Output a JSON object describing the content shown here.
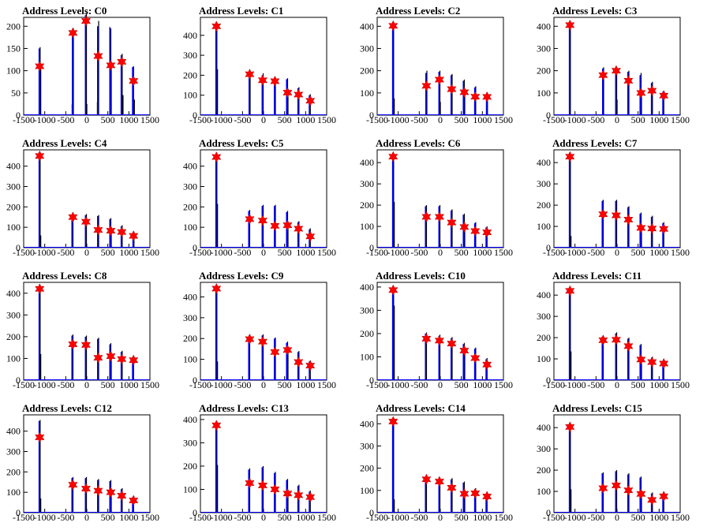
{
  "xticks": [
    "-1500",
    "-1000",
    "-500",
    "0",
    "500",
    "1000",
    "1500"
  ],
  "xlim": [
    -1500,
    1500
  ],
  "peak_x": [
    -1120,
    -330,
    -20,
    270,
    570,
    830,
    1110
  ],
  "colors": {
    "hist": "#0000ff",
    "black": "#000000",
    "marker": "#ff0000"
  },
  "chart_data": [
    {
      "type": "histogram",
      "title": "Address Levels: C0",
      "ylim": [
        0,
        220
      ],
      "yticks": [
        0,
        50,
        100,
        150,
        200
      ],
      "markers": [
        110,
        185,
        212,
        133,
        112,
        120,
        77
      ],
      "spikes": [
        [
          -1120,
          153,
          150
        ],
        [
          -1105,
          110,
          100
        ],
        [
          -360,
          25,
          0
        ],
        [
          -330,
          195,
          190
        ],
        [
          -20,
          230,
          225
        ],
        [
          -10,
          25,
          0
        ],
        [
          240,
          30,
          0
        ],
        [
          270,
          212,
          200
        ],
        [
          560,
          195,
          198
        ],
        [
          570,
          113,
          113
        ],
        [
          830,
          138,
          135
        ],
        [
          850,
          45,
          0
        ],
        [
          1100,
          110,
          108
        ],
        [
          1120,
          35,
          0
        ]
      ]
    },
    {
      "type": "histogram",
      "title": "Address Levels: C1",
      "ylim": [
        0,
        490
      ],
      "yticks": [
        0,
        100,
        200,
        300,
        400
      ],
      "markers": [
        445,
        205,
        175,
        170,
        113,
        103,
        72
      ],
      "spikes": [
        [
          -1120,
          450,
          440
        ],
        [
          -1105,
          230,
          0
        ],
        [
          -350,
          70,
          0
        ],
        [
          -330,
          215,
          210
        ],
        [
          -30,
          60,
          0
        ],
        [
          -20,
          210,
          200
        ],
        [
          260,
          55,
          0
        ],
        [
          270,
          190,
          185
        ],
        [
          560,
          185,
          180
        ],
        [
          570,
          113,
          110
        ],
        [
          830,
          140,
          135
        ],
        [
          1100,
          105,
          100
        ]
      ]
    },
    {
      "type": "histogram",
      "title": "Address Levels: C2",
      "ylim": [
        0,
        440
      ],
      "yticks": [
        0,
        100,
        200,
        300,
        400
      ],
      "markers": [
        402,
        132,
        160,
        117,
        103,
        83,
        82
      ],
      "spikes": [
        [
          -1120,
          405,
          400
        ],
        [
          -1105,
          75,
          0
        ],
        [
          -340,
          70,
          0
        ],
        [
          -330,
          200,
          190
        ],
        [
          -20,
          200,
          195
        ],
        [
          -10,
          60,
          0
        ],
        [
          270,
          185,
          180
        ],
        [
          560,
          160,
          155
        ],
        [
          570,
          105,
          100
        ],
        [
          830,
          130,
          125
        ],
        [
          1110,
          100,
          95
        ]
      ]
    },
    {
      "type": "histogram",
      "title": "Address Levels: C3",
      "ylim": [
        0,
        440
      ],
      "yticks": [
        0,
        100,
        200,
        300,
        400
      ],
      "markers": [
        405,
        180,
        200,
        155,
        100,
        110,
        88
      ],
      "spikes": [
        [
          -1120,
          410,
          405
        ],
        [
          -340,
          70,
          0
        ],
        [
          -330,
          215,
          210
        ],
        [
          -20,
          215,
          210
        ],
        [
          -10,
          70,
          0
        ],
        [
          270,
          200,
          195
        ],
        [
          560,
          190,
          180
        ],
        [
          570,
          100,
          95
        ],
        [
          830,
          150,
          145
        ],
        [
          1100,
          110,
          105
        ]
      ]
    },
    {
      "type": "histogram",
      "title": "Address Levels: C4",
      "ylim": [
        0,
        480
      ],
      "yticks": [
        0,
        100,
        200,
        300,
        400
      ],
      "markers": [
        450,
        150,
        127,
        87,
        83,
        77,
        58
      ],
      "spikes": [
        [
          -1120,
          455,
          450
        ],
        [
          -1105,
          60,
          0
        ],
        [
          -340,
          165,
          160
        ],
        [
          -20,
          165,
          160
        ],
        [
          270,
          160,
          155
        ],
        [
          560,
          145,
          140
        ],
        [
          570,
          85,
          80
        ],
        [
          830,
          110,
          105
        ],
        [
          1110,
          75,
          70
        ]
      ]
    },
    {
      "type": "histogram",
      "title": "Address Levels: C5",
      "ylim": [
        0,
        480
      ],
      "yticks": [
        0,
        100,
        200,
        300,
        400
      ],
      "markers": [
        445,
        140,
        133,
        107,
        110,
        93,
        55
      ],
      "spikes": [
        [
          -1120,
          450,
          445
        ],
        [
          -1105,
          215,
          0
        ],
        [
          -340,
          185,
          180
        ],
        [
          -20,
          210,
          205
        ],
        [
          270,
          210,
          205
        ],
        [
          560,
          180,
          175
        ],
        [
          570,
          110,
          105
        ],
        [
          830,
          130,
          125
        ],
        [
          1100,
          95,
          90
        ]
      ]
    },
    {
      "type": "histogram",
      "title": "Address Levels: C6",
      "ylim": [
        0,
        460
      ],
      "yticks": [
        0,
        100,
        200,
        300,
        400
      ],
      "markers": [
        428,
        145,
        145,
        118,
        97,
        78,
        72
      ],
      "spikes": [
        [
          -1120,
          430,
          425
        ],
        [
          -1105,
          215,
          0
        ],
        [
          -340,
          200,
          195
        ],
        [
          -20,
          200,
          195
        ],
        [
          270,
          180,
          175
        ],
        [
          560,
          160,
          155
        ],
        [
          570,
          97,
          95
        ],
        [
          830,
          120,
          115
        ],
        [
          1100,
          100,
          95
        ]
      ]
    },
    {
      "type": "histogram",
      "title": "Address Levels: C7",
      "ylim": [
        0,
        460
      ],
      "yticks": [
        0,
        100,
        200,
        300,
        400
      ],
      "markers": [
        428,
        157,
        152,
        132,
        93,
        90,
        88
      ],
      "spikes": [
        [
          -1120,
          430,
          425
        ],
        [
          -1105,
          55,
          0
        ],
        [
          -340,
          225,
          220
        ],
        [
          -20,
          225,
          220
        ],
        [
          270,
          195,
          190
        ],
        [
          560,
          165,
          160
        ],
        [
          570,
          93,
          90
        ],
        [
          830,
          150,
          145
        ],
        [
          1100,
          120,
          115
        ]
      ]
    },
    {
      "type": "histogram",
      "title": "Address Levels: C8",
      "ylim": [
        0,
        450
      ],
      "yticks": [
        0,
        100,
        200,
        300,
        400
      ],
      "markers": [
        420,
        165,
        162,
        103,
        110,
        97,
        92
      ],
      "spikes": [
        [
          -1120,
          425,
          420
        ],
        [
          -1105,
          120,
          0
        ],
        [
          -340,
          210,
          205
        ],
        [
          -20,
          205,
          200
        ],
        [
          270,
          195,
          190
        ],
        [
          560,
          170,
          165
        ],
        [
          570,
          110,
          105
        ],
        [
          830,
          135,
          130
        ],
        [
          1100,
          110,
          105
        ]
      ]
    },
    {
      "type": "histogram",
      "title": "Address Levels: C9",
      "ylim": [
        0,
        470
      ],
      "yticks": [
        0,
        100,
        200,
        300,
        400
      ],
      "markers": [
        440,
        197,
        185,
        135,
        145,
        87,
        70
      ],
      "spikes": [
        [
          -1120,
          445,
          440
        ],
        [
          -1105,
          90,
          0
        ],
        [
          -340,
          215,
          210
        ],
        [
          -20,
          220,
          215
        ],
        [
          270,
          205,
          200
        ],
        [
          560,
          185,
          180
        ],
        [
          570,
          145,
          140
        ],
        [
          830,
          140,
          135
        ],
        [
          1100,
          95,
          90
        ]
      ]
    },
    {
      "type": "histogram",
      "title": "Address Levels: C10",
      "ylim": [
        0,
        420
      ],
      "yticks": [
        0,
        100,
        200,
        300,
        400
      ],
      "markers": [
        387,
        178,
        170,
        157,
        127,
        95,
        67
      ],
      "spikes": [
        [
          -1120,
          390,
          385
        ],
        [
          -1105,
          320,
          0
        ],
        [
          -340,
          205,
          200
        ],
        [
          -20,
          195,
          190
        ],
        [
          270,
          185,
          180
        ],
        [
          560,
          160,
          155
        ],
        [
          570,
          127,
          125
        ],
        [
          830,
          140,
          135
        ],
        [
          1100,
          95,
          90
        ]
      ]
    },
    {
      "type": "histogram",
      "title": "Address Levels: C11",
      "ylim": [
        0,
        460
      ],
      "yticks": [
        0,
        100,
        200,
        300,
        400
      ],
      "markers": [
        420,
        188,
        190,
        160,
        97,
        85,
        78
      ],
      "spikes": [
        [
          -1120,
          425,
          420
        ],
        [
          -1105,
          135,
          0
        ],
        [
          -340,
          210,
          205
        ],
        [
          -20,
          225,
          220
        ],
        [
          270,
          200,
          195
        ],
        [
          560,
          170,
          165
        ],
        [
          570,
          97,
          95
        ],
        [
          830,
          110,
          105
        ],
        [
          1100,
          95,
          90
        ]
      ]
    },
    {
      "type": "histogram",
      "title": "Address Levels: C12",
      "ylim": [
        0,
        480
      ],
      "yticks": [
        0,
        100,
        200,
        300,
        400
      ],
      "markers": [
        370,
        137,
        118,
        108,
        100,
        83,
        60
      ],
      "spikes": [
        [
          -1120,
          455,
          450
        ],
        [
          -1105,
          70,
          0
        ],
        [
          -340,
          175,
          170
        ],
        [
          -20,
          175,
          170
        ],
        [
          270,
          165,
          160
        ],
        [
          560,
          160,
          155
        ],
        [
          570,
          100,
          95
        ],
        [
          830,
          120,
          115
        ],
        [
          1100,
          80,
          75
        ]
      ]
    },
    {
      "type": "histogram",
      "title": "Address Levels: C13",
      "ylim": [
        0,
        420
      ],
      "yticks": [
        0,
        100,
        200,
        300,
        400
      ],
      "markers": [
        375,
        127,
        117,
        100,
        82,
        75,
        67
      ],
      "spikes": [
        [
          -1120,
          380,
          375
        ],
        [
          -1105,
          205,
          0
        ],
        [
          -340,
          190,
          185
        ],
        [
          -20,
          200,
          195
        ],
        [
          270,
          175,
          170
        ],
        [
          560,
          145,
          140
        ],
        [
          570,
          82,
          80
        ],
        [
          830,
          120,
          115
        ],
        [
          1100,
          95,
          90
        ]
      ]
    },
    {
      "type": "histogram",
      "title": "Address Levels: C14",
      "ylim": [
        0,
        440
      ],
      "yticks": [
        0,
        100,
        200,
        300,
        400
      ],
      "markers": [
        410,
        150,
        140,
        112,
        85,
        87,
        73
      ],
      "spikes": [
        [
          -1120,
          415,
          410
        ],
        [
          -1105,
          60,
          0
        ],
        [
          -340,
          155,
          150
        ],
        [
          -20,
          145,
          140
        ],
        [
          270,
          155,
          150
        ],
        [
          560,
          140,
          135
        ],
        [
          570,
          85,
          80
        ],
        [
          830,
          110,
          105
        ],
        [
          1100,
          85,
          80
        ]
      ]
    },
    {
      "type": "histogram",
      "title": "Address Levels: C15",
      "ylim": [
        0,
        460
      ],
      "yticks": [
        0,
        100,
        200,
        300,
        400
      ],
      "markers": [
        403,
        115,
        128,
        105,
        88,
        60,
        77
      ],
      "spikes": [
        [
          -1120,
          410,
          405
        ],
        [
          -1105,
          110,
          0
        ],
        [
          -340,
          190,
          185
        ],
        [
          -20,
          200,
          195
        ],
        [
          270,
          185,
          180
        ],
        [
          560,
          170,
          165
        ],
        [
          570,
          88,
          85
        ],
        [
          830,
          95,
          90
        ],
        [
          1100,
          80,
          75
        ]
      ]
    }
  ]
}
